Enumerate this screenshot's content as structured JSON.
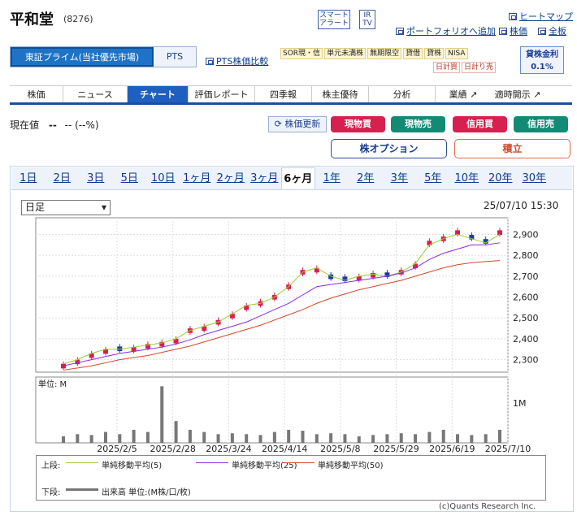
{
  "header": {
    "title": "平和堂",
    "code": "(8276)",
    "smart_alert": [
      "スマート",
      "アラート"
    ],
    "ir_tv": [
      "IR",
      "TV"
    ],
    "link_hitomap": "ヒートマップ",
    "link_portfolio": "ポートフォリオへ追加",
    "link_stock": "株価",
    "link_full": "全板"
  },
  "market_tabs": {
    "active": "東証プライム(当社優先市場)",
    "pts": "PTS"
  },
  "pts_compare": "PTS株価比較",
  "tags_row1": [
    "SOR現・信",
    "単元未満株",
    "無期限空",
    "貸借",
    "貸株",
    "NISA"
  ],
  "tags_row2": [
    "日計買",
    "日計り売"
  ],
  "lending": {
    "label": "貸株金利",
    "rate": "0.1%"
  },
  "nav": {
    "items": [
      "株価",
      "ニュース",
      "チャート",
      "評価レポート",
      "四季報",
      "株主優待",
      "分析"
    ],
    "active": "チャート",
    "ext1": "業績",
    "ext2": "適時開示"
  },
  "price": {
    "label": "現在値",
    "value": "--",
    "change": "-- (--%)"
  },
  "buttons": {
    "refresh": "株価更新",
    "genbutsu_buy": "現物買",
    "genbutsu_sell": "現物売",
    "shinyo_buy": "信用買",
    "shinyo_sell": "信用売",
    "option": "株オプション",
    "tsumitate": "積立"
  },
  "colors": {
    "buy": "#d6204f",
    "sell": "#138a74",
    "accent": "#1e5fbf"
  },
  "periods": [
    "1日",
    "2日",
    "3日",
    "5日",
    "10日",
    "1ヶ月",
    "2ヶ月",
    "3ヶ月",
    "6ヶ月",
    "1年",
    "2年",
    "3年",
    "5年",
    "10年",
    "20年",
    "30年"
  ],
  "selected_period": "6ヶ月",
  "bar_type": "日足",
  "timestamp": "25/07/10 15:30",
  "chart_data": {
    "type": "line",
    "title": "",
    "price_ylim": [
      2240,
      2980
    ],
    "price_ticks": [
      "2,900",
      "2,800",
      "2,700",
      "2,600",
      "2,500",
      "2,400",
      "2,300"
    ],
    "x_labels": [
      "2025/2/5",
      "2025/2/28",
      "2025/3/24",
      "2025/4/14",
      "2025/5/8",
      "2025/5/29",
      "2025/6/19",
      "2025/7/10"
    ],
    "volume_unit": "単位: M",
    "volume_ticks": [
      "1M"
    ],
    "series": [
      {
        "name": "単純移動平均(5)",
        "color": "#9acd32",
        "values": [
          2280,
          2300,
          2330,
          2350,
          2350,
          2360,
          2370,
          2380,
          2400,
          2440,
          2460,
          2480,
          2520,
          2560,
          2570,
          2600,
          2650,
          2720,
          2740,
          2700,
          2680,
          2700,
          2710,
          2700,
          2720,
          2760,
          2850,
          2880,
          2900,
          2880,
          2860,
          2900
        ]
      },
      {
        "name": "単純移動平均(25)",
        "color": "#8a2be2",
        "values": [
          2270,
          2285,
          2300,
          2315,
          2330,
          2340,
          2350,
          2360,
          2375,
          2395,
          2420,
          2440,
          2460,
          2480,
          2510,
          2540,
          2570,
          2610,
          2650,
          2660,
          2670,
          2680,
          2690,
          2700,
          2715,
          2740,
          2780,
          2810,
          2830,
          2850,
          2850,
          2860
        ]
      },
      {
        "name": "単純移動平均(50)",
        "color": "#d9452b",
        "values": [
          2250,
          2260,
          2270,
          2285,
          2300,
          2310,
          2320,
          2335,
          2350,
          2365,
          2385,
          2405,
          2425,
          2445,
          2465,
          2490,
          2515,
          2540,
          2570,
          2595,
          2615,
          2635,
          2650,
          2665,
          2680,
          2700,
          2720,
          2740,
          2755,
          2765,
          2770,
          2775
        ]
      }
    ],
    "candles": [
      2280,
      2300,
      2330,
      2350,
      2345,
      2360,
      2375,
      2385,
      2400,
      2450,
      2460,
      2490,
      2520,
      2560,
      2580,
      2610,
      2660,
      2730,
      2740,
      2690,
      2680,
      2700,
      2715,
      2700,
      2730,
      2760,
      2870,
      2890,
      2920,
      2880,
      2860,
      2920
    ],
    "volumes": [
      0.15,
      0.2,
      0.18,
      0.25,
      0.2,
      0.3,
      0.25,
      1.3,
      0.5,
      0.3,
      0.25,
      0.2,
      0.22,
      0.2,
      0.18,
      0.25,
      0.3,
      0.28,
      0.2,
      0.22,
      0.2,
      0.15,
      0.18,
      0.2,
      0.22,
      0.2,
      0.25,
      0.3,
      0.2,
      0.18,
      0.2,
      0.3
    ]
  },
  "legend": {
    "upper_label": "上段:",
    "lower_label": "下段:",
    "ma5": "単純移動平均(5)",
    "ma25": "単純移動平均(25)",
    "ma50": "単純移動平均(50)",
    "volume": "出来高 単位:(M株/口/枚)",
    "copyright": "(c)Quants Research Inc."
  }
}
